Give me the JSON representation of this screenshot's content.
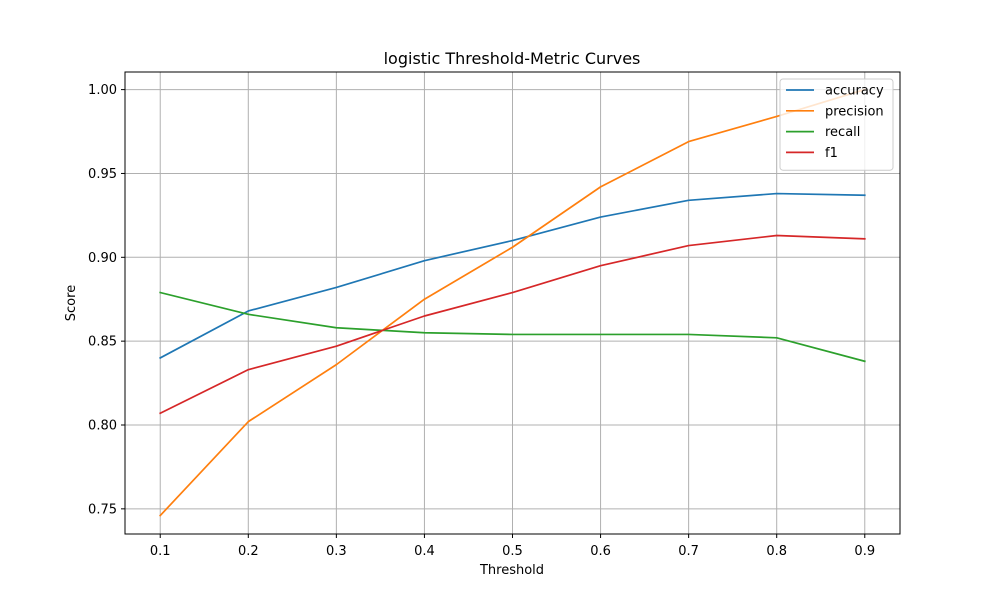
{
  "chart_data": {
    "type": "line",
    "title": "logistic Threshold-Metric Curves",
    "xlabel": "Threshold",
    "ylabel": "Score",
    "x": [
      0.1,
      0.2,
      0.3,
      0.4,
      0.5,
      0.6,
      0.7,
      0.8,
      0.9
    ],
    "xticks": [
      "0.1",
      "0.2",
      "0.3",
      "0.4",
      "0.5",
      "0.6",
      "0.7",
      "0.8",
      "0.9"
    ],
    "yticks": [
      "0.75",
      "0.80",
      "0.85",
      "0.90",
      "0.95",
      "1.00"
    ],
    "ylim": [
      0.735,
      1.0105
    ],
    "xlim": [
      0.06,
      0.94
    ],
    "grid": true,
    "legend_position": "top-right",
    "series": [
      {
        "name": "accuracy",
        "color": "#1f77b4",
        "values": [
          0.84,
          0.868,
          0.882,
          0.898,
          0.91,
          0.924,
          0.934,
          0.938,
          0.937
        ]
      },
      {
        "name": "precision",
        "color": "#ff7f0e",
        "values": [
          0.746,
          0.802,
          0.836,
          0.875,
          0.906,
          0.942,
          0.969,
          0.984,
          1.0
        ]
      },
      {
        "name": "recall",
        "color": "#2ca02c",
        "values": [
          0.879,
          0.866,
          0.858,
          0.855,
          0.854,
          0.854,
          0.854,
          0.852,
          0.838
        ]
      },
      {
        "name": "f1",
        "color": "#d62728",
        "values": [
          0.807,
          0.833,
          0.847,
          0.865,
          0.879,
          0.895,
          0.907,
          0.913,
          0.911
        ]
      }
    ]
  }
}
